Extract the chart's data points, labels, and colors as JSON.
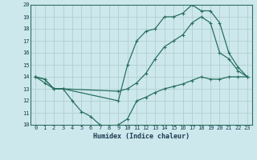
{
  "xlabel": "Humidex (Indice chaleur)",
  "bg_color": "#cde8ec",
  "line_color": "#2a7060",
  "grid_color": "#b0cdd0",
  "xlim": [
    -0.5,
    23.5
  ],
  "ylim": [
    10,
    20
  ],
  "xticks": [
    0,
    1,
    2,
    3,
    4,
    5,
    6,
    7,
    8,
    9,
    10,
    11,
    12,
    13,
    14,
    15,
    16,
    17,
    18,
    19,
    20,
    21,
    22,
    23
  ],
  "yticks": [
    10,
    11,
    12,
    13,
    14,
    15,
    16,
    17,
    18,
    19,
    20
  ],
  "line1_x": [
    0,
    1,
    2,
    3,
    4,
    5,
    6,
    7,
    8,
    9,
    10,
    11,
    12,
    13,
    14,
    15,
    16,
    17,
    18,
    19,
    20,
    21,
    22,
    23
  ],
  "line1_y": [
    14.0,
    13.8,
    13.0,
    13.0,
    12.0,
    11.1,
    10.7,
    10.0,
    9.8,
    10.0,
    10.5,
    12.0,
    12.3,
    12.7,
    13.0,
    13.2,
    13.4,
    13.7,
    14.0,
    13.8,
    13.8,
    14.0,
    14.0,
    14.0
  ],
  "line2_x": [
    0,
    1,
    2,
    3,
    9,
    10,
    11,
    12,
    13,
    14,
    15,
    16,
    17,
    18,
    19,
    20,
    21,
    22,
    23
  ],
  "line2_y": [
    14.0,
    13.8,
    13.0,
    13.0,
    12.0,
    15.0,
    17.0,
    17.8,
    18.0,
    19.0,
    19.0,
    19.3,
    20.0,
    19.5,
    19.5,
    18.5,
    16.0,
    14.8,
    14.0
  ],
  "line3_x": [
    0,
    1,
    2,
    3,
    9,
    10,
    11,
    12,
    13,
    14,
    15,
    16,
    17,
    18,
    19,
    20,
    21,
    22,
    23
  ],
  "line3_y": [
    14.0,
    13.5,
    13.0,
    13.0,
    12.8,
    13.0,
    13.5,
    14.3,
    15.5,
    16.5,
    17.0,
    17.5,
    18.5,
    19.0,
    18.5,
    16.0,
    15.5,
    14.5,
    14.0
  ],
  "marker": "+",
  "markersize": 3.5,
  "linewidth": 0.9
}
